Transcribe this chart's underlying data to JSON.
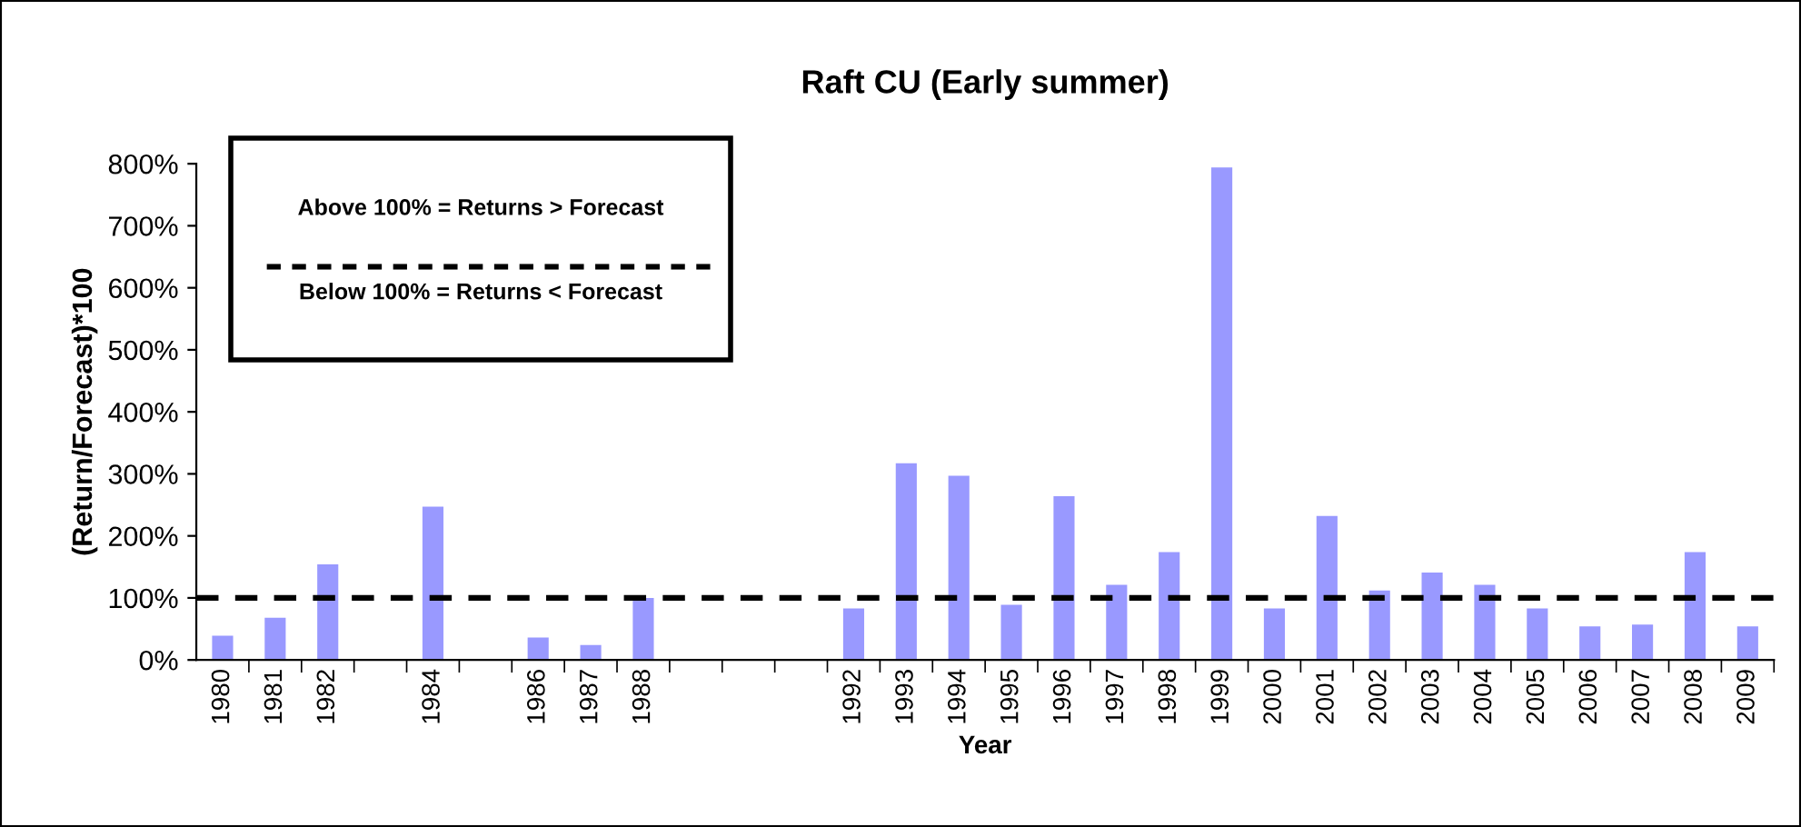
{
  "chart_data": {
    "type": "bar",
    "title": "Raft CU (Early summer)",
    "xlabel": "Year",
    "ylabel": "(Return/Forecast)*100",
    "categories": [
      "1980",
      "1981",
      "1982",
      null,
      "1984",
      null,
      "1986",
      "1987",
      "1988",
      null,
      null,
      null,
      "1992",
      "1993",
      "1994",
      "1995",
      "1996",
      "1997",
      "1998",
      "1999",
      "2000",
      "2001",
      "2002",
      "2003",
      "2004",
      "2005",
      "2006",
      "2007",
      "2008",
      "2009"
    ],
    "series": [
      {
        "color": "#9999ff",
        "values": [
          39,
          68,
          154,
          null,
          247,
          null,
          36,
          24,
          100,
          null,
          null,
          null,
          83,
          317,
          297,
          89,
          264,
          121,
          174,
          794,
          83,
          232,
          112,
          141,
          121,
          83,
          54,
          57,
          174,
          54
        ]
      }
    ],
    "ylim": [
      0,
      800
    ],
    "yticks": [
      {
        "value": 0,
        "label": "0%"
      },
      {
        "value": 100,
        "label": "100%"
      },
      {
        "value": 200,
        "label": "200%"
      },
      {
        "value": 300,
        "label": "300%"
      },
      {
        "value": 400,
        "label": "400%"
      },
      {
        "value": 500,
        "label": "500%"
      },
      {
        "value": 600,
        "label": "600%"
      },
      {
        "value": 700,
        "label": "700%"
      },
      {
        "value": 800,
        "label": "800%"
      }
    ],
    "ref_lines": [
      {
        "axis": "y",
        "value": 100,
        "color": "#000000",
        "line_style": "dashed"
      }
    ],
    "annotations": [
      "Above 100% = Returns > Forecast",
      "Below 100% = Returns < Forecast"
    ],
    "grid": false
  }
}
